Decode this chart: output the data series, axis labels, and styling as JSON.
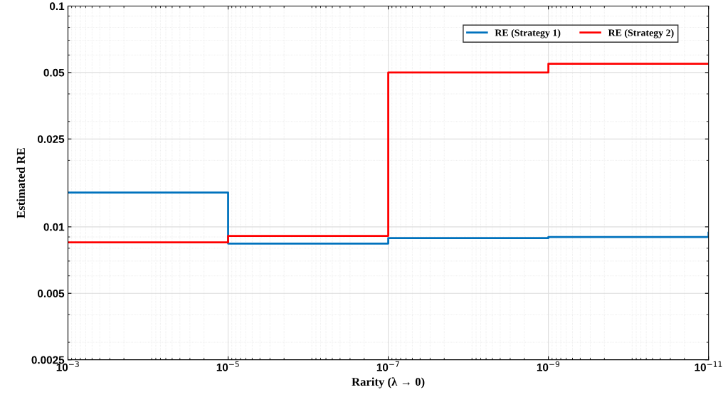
{
  "chart_data": {
    "type": "step",
    "xlabel": "Rarity (λ → 0)",
    "ylabel": "Estimated RE",
    "log": "xy",
    "x": [
      0.001,
      1e-05,
      1e-07,
      1e-09,
      1e-11
    ],
    "series": [
      {
        "name": "RE (Strategy 1)",
        "color": "#0072bd",
        "values": [
          0.0143,
          0.0084,
          0.0089,
          0.009,
          0.0094
        ]
      },
      {
        "name": "RE (Strategy 2)",
        "color": "#ff0000",
        "values": [
          0.0085,
          0.0091,
          0.05,
          0.0548,
          0.0548
        ]
      }
    ],
    "xlim": [
      0.001,
      1e-11
    ],
    "xticks": [
      {
        "value": 0.001,
        "label": "10$^{−3}$"
      },
      {
        "value": 1e-05,
        "label": "10$^{−5}$"
      },
      {
        "value": 1e-07,
        "label": "10$^{−7}$"
      },
      {
        "value": 1e-09,
        "label": "10$^{−9}$"
      },
      {
        "value": 1e-11,
        "label": "10$^{−11}$"
      }
    ],
    "ylim": [
      0.0025,
      0.1
    ],
    "yticks": [
      0.0025,
      0.005,
      0.01,
      0.025,
      0.05,
      0.1
    ],
    "grid": true,
    "legend": "top right",
    "line_style": "solid"
  }
}
